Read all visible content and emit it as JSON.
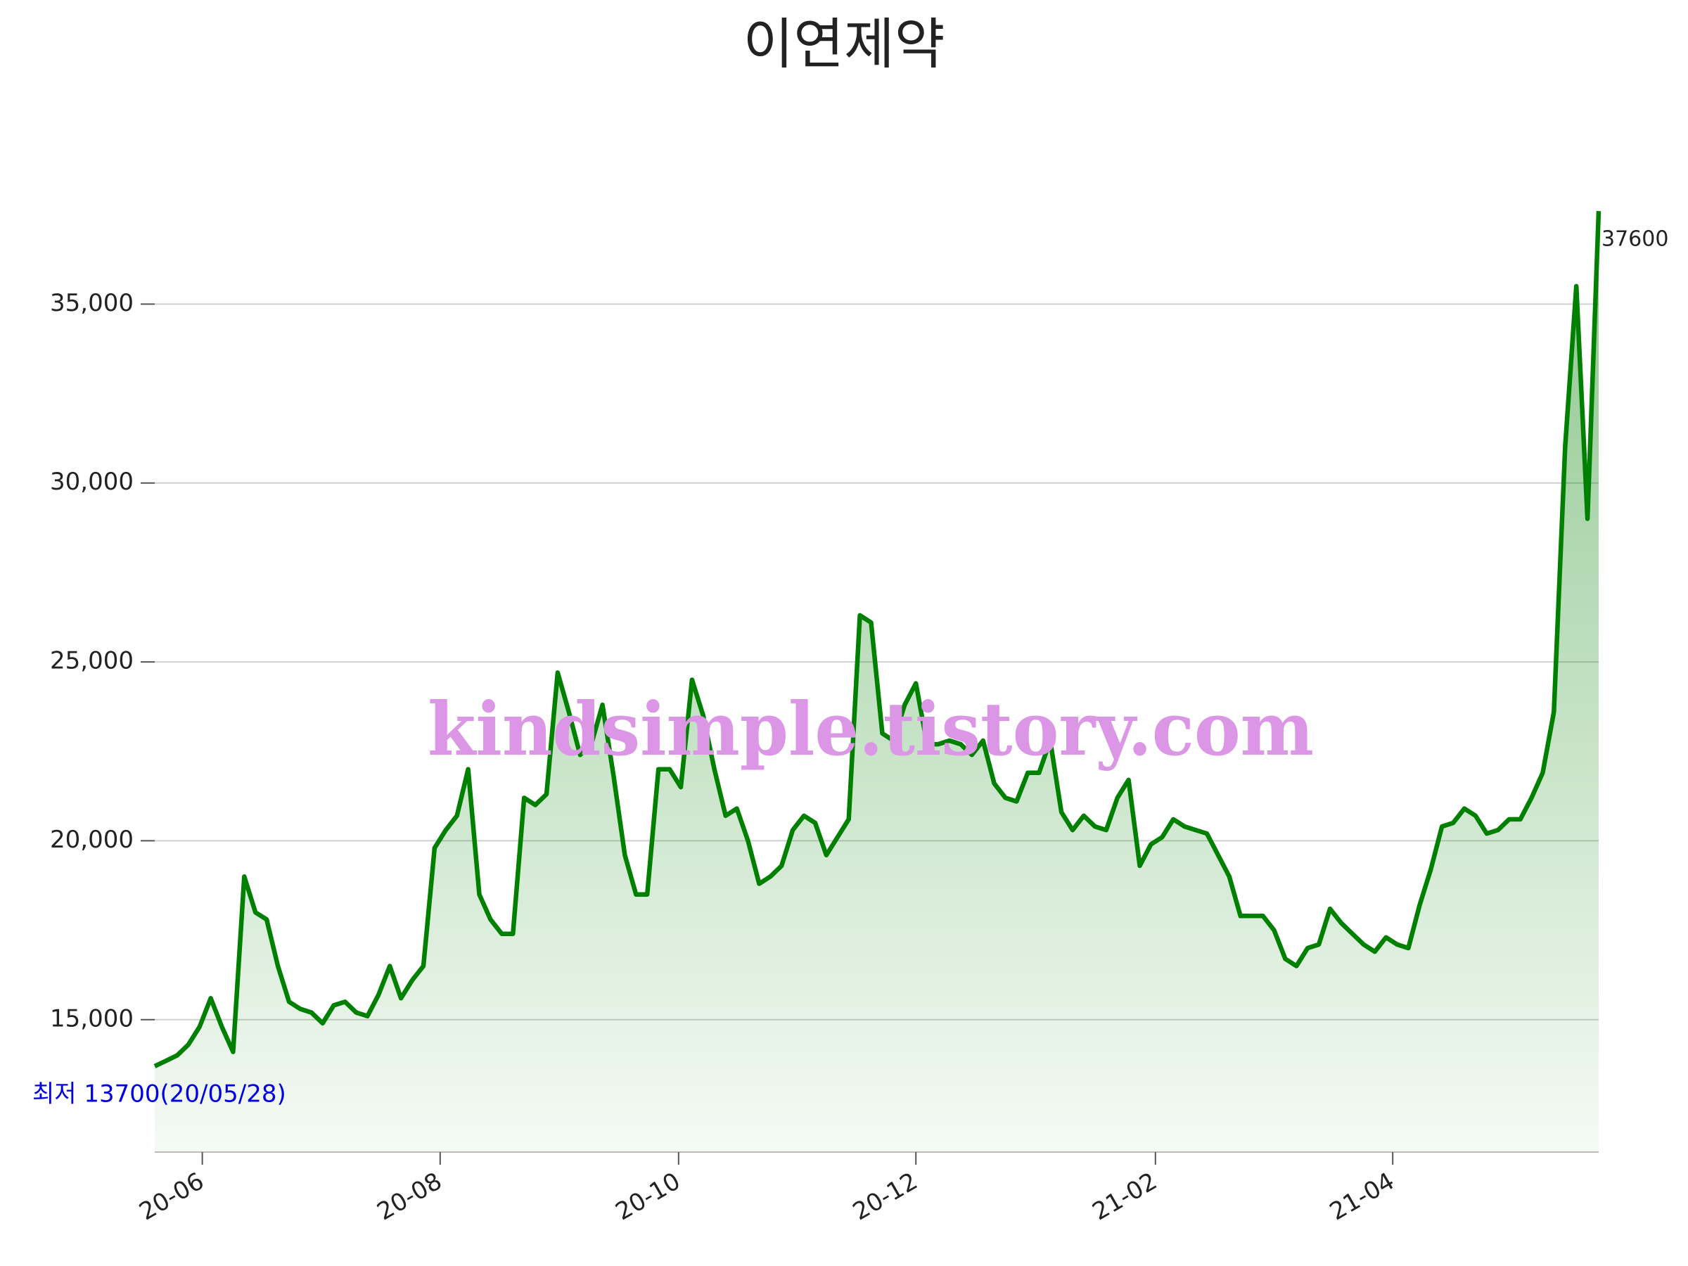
{
  "chart_data": {
    "type": "area-line",
    "title": "이연제약",
    "watermark": "kindsimple.tistory.com",
    "max_label": "37600",
    "min_label": "최저 13700(20/05/28)",
    "series": [
      {
        "color": "#008000",
        "values": [
          13700,
          13850,
          14000,
          14300,
          14800,
          15600,
          14800,
          14100,
          19000,
          18000,
          17800,
          16500,
          15500,
          15300,
          15200,
          14900,
          15400,
          15500,
          15200,
          15100,
          15700,
          16500,
          15600,
          16100,
          16500,
          19800,
          20300,
          20700,
          22000,
          18500,
          17800,
          17400,
          17400,
          21200,
          21000,
          21300,
          24700,
          23600,
          22400,
          22700,
          23800,
          21800,
          19600,
          18500,
          18500,
          22000,
          22000,
          21500,
          24500,
          23500,
          22000,
          20700,
          20900,
          20000,
          18800,
          19000,
          19300,
          20300,
          20700,
          20500,
          19600,
          20100,
          20600,
          26300,
          26100,
          23000,
          22800,
          23800,
          24400,
          22700,
          22700,
          22800,
          22700,
          22400,
          22800,
          21600,
          21200,
          21100,
          21900,
          21900,
          22800,
          20800,
          20300,
          20700,
          20400,
          20300,
          21200,
          21700,
          19300,
          19900,
          20100,
          20600,
          20400,
          20300,
          20200,
          19600,
          19000,
          17900,
          17900,
          17900,
          17500,
          16700,
          16500,
          17000,
          17100,
          18100,
          17700,
          17400,
          17100,
          16900,
          17300,
          17100,
          17000,
          18200,
          19200,
          20400,
          20500,
          20900,
          20700,
          20200,
          20300,
          20600,
          20600,
          21200,
          21900,
          23600,
          31000,
          35500,
          29000,
          37600
        ]
      }
    ],
    "xlim": [
      0,
      129
    ],
    "xticks": [
      {
        "value": 4.25,
        "label": "20-06"
      },
      {
        "value": 25.5,
        "label": "20-08"
      },
      {
        "value": 46.8,
        "label": "20-10"
      },
      {
        "value": 68.0,
        "label": "20-12"
      },
      {
        "value": 89.4,
        "label": "21-02"
      },
      {
        "value": 110.6,
        "label": "21-04"
      }
    ],
    "ylim": [
      11300,
      37700
    ],
    "yticks": [
      {
        "value": 15000,
        "label": "15,000"
      },
      {
        "value": 20000,
        "label": "20,000"
      },
      {
        "value": 25000,
        "label": "25,000"
      },
      {
        "value": 30000,
        "label": "30,000"
      },
      {
        "value": 35000,
        "label": "35,000"
      }
    ],
    "grid": true
  }
}
